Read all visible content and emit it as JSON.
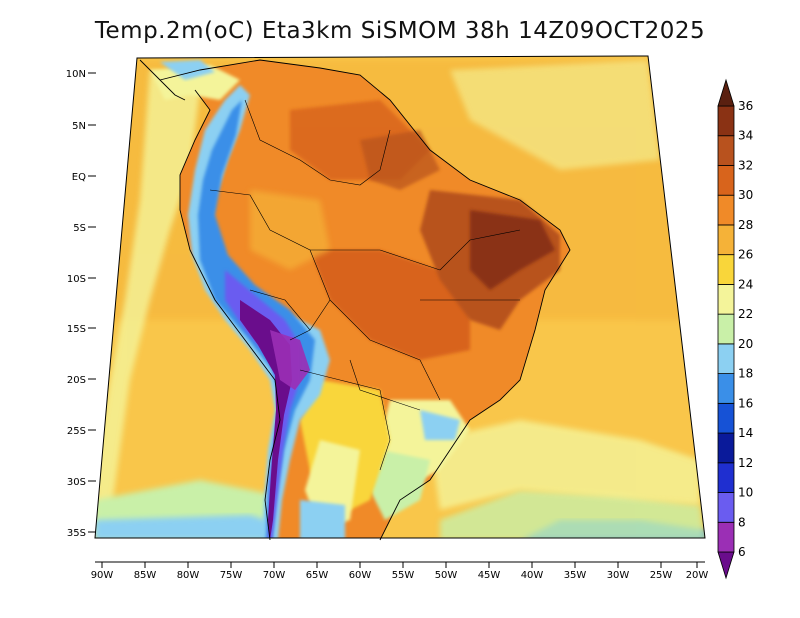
{
  "title": "Temp.2m(oC) Eta3km SiSMOM 38h 14Z09OCT2025",
  "lat_ticks": [
    "10N",
    "5N",
    "EQ",
    "5S",
    "10S",
    "15S",
    "20S",
    "25S",
    "30S",
    "35S"
  ],
  "lon_ticks": [
    "90W",
    "85W",
    "80W",
    "75W",
    "70W",
    "65W",
    "60W",
    "55W",
    "50W",
    "45W",
    "40W",
    "35W",
    "30W",
    "25W",
    "20W"
  ],
  "colorbar": {
    "levels": [
      "6",
      "8",
      "10",
      "12",
      "14",
      "16",
      "18",
      "20",
      "22",
      "24",
      "26",
      "28",
      "30",
      "32",
      "34",
      "36"
    ],
    "colors": [
      "#6a0d8c",
      "#9b2fb5",
      "#6a5cf0",
      "#1f2fd0",
      "#0a1a9a",
      "#1652d6",
      "#3a8fe8",
      "#8cd0f2",
      "#c9f0a8",
      "#f4f49a",
      "#f9d63a",
      "#f5b238",
      "#f08a28",
      "#d8641c",
      "#b8521e",
      "#8a3214",
      "#5a2010"
    ]
  },
  "ocean_color": "#f9c64a"
}
